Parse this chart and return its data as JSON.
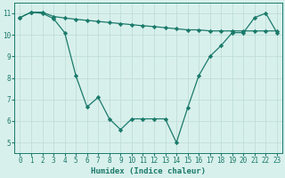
{
  "line1_x": [
    0,
    1,
    2,
    3,
    4,
    5,
    6,
    7,
    8,
    9,
    10,
    11,
    12,
    13,
    14,
    15,
    16,
    17,
    18,
    19,
    20,
    21,
    22,
    23
  ],
  "line1_y": [
    10.8,
    11.05,
    11.05,
    10.85,
    10.78,
    10.72,
    10.67,
    10.62,
    10.57,
    10.52,
    10.47,
    10.42,
    10.38,
    10.33,
    10.28,
    10.23,
    10.23,
    10.18,
    10.18,
    10.18,
    10.18,
    10.18,
    10.18,
    10.18
  ],
  "line2_x": [
    0,
    1,
    2,
    3,
    4,
    5,
    6,
    7,
    8,
    9,
    10,
    11,
    12,
    13,
    14,
    15,
    16,
    17,
    18,
    19,
    20,
    21,
    22,
    23
  ],
  "line2_y": [
    10.8,
    11.05,
    11.0,
    10.75,
    10.1,
    8.1,
    6.65,
    7.1,
    6.1,
    5.6,
    6.1,
    6.1,
    6.1,
    6.1,
    5.0,
    6.6,
    8.1,
    9.0,
    9.5,
    10.1,
    10.1,
    10.8,
    11.0,
    10.1
  ],
  "line_color": "#1a7a6a",
  "bg_color": "#d8f0ec",
  "grid_color": "#c0ddd8",
  "xlabel": "Humidex (Indice chaleur)",
  "ylim": [
    4.5,
    11.5
  ],
  "xlim": [
    -0.5,
    23.5
  ],
  "yticks": [
    5,
    6,
    7,
    8,
    9,
    10,
    11
  ],
  "xticks": [
    0,
    1,
    2,
    3,
    4,
    5,
    6,
    7,
    8,
    9,
    10,
    11,
    12,
    13,
    14,
    15,
    16,
    17,
    18,
    19,
    20,
    21,
    22,
    23
  ],
  "marker": "D",
  "markersize": 2.2,
  "linewidth": 0.9,
  "tick_fontsize": 5.5,
  "xlabel_fontsize": 6.5
}
